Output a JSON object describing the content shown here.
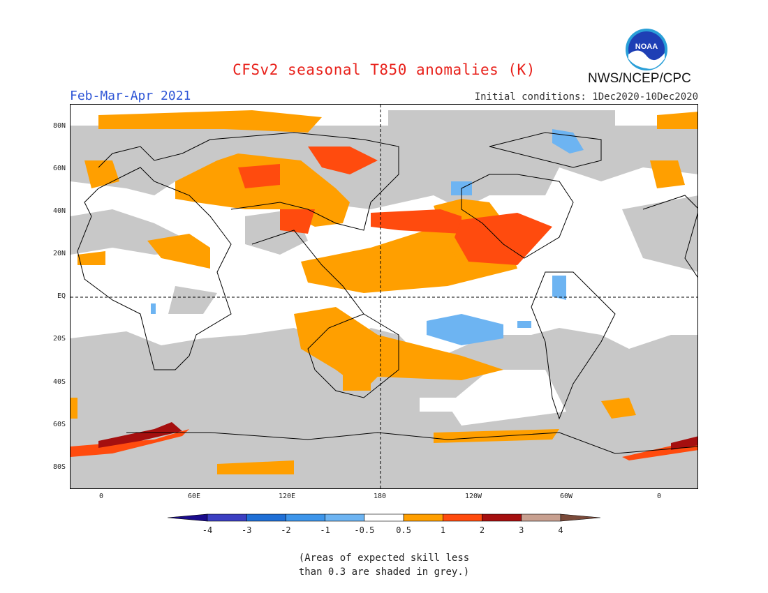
{
  "title": "CFSv2 seasonal T850 anomalies (K)",
  "period": "Feb-Mar-Apr 2021",
  "initial_conditions": "Initial conditions: 1Dec2020-10Dec2020",
  "agency": "NWS/NCEP/CPC",
  "logo_text": "NOAA",
  "lat_labels": [
    "80N",
    "60N",
    "40N",
    "20N",
    "EQ",
    "20S",
    "40S",
    "60S",
    "80S"
  ],
  "lon_labels": [
    "0",
    "60E",
    "120E",
    "180",
    "120W",
    "60W",
    "0"
  ],
  "colorbar": {
    "labels": [
      "-4",
      "-3",
      "-2",
      "-1",
      "-0.5",
      "0.5",
      "1",
      "2",
      "3",
      "4"
    ],
    "colors": [
      "#1a0b8c",
      "#3b3fc2",
      "#1f6fd6",
      "#3d95ea",
      "#6db4f2",
      "#ffffff",
      "#ff9f00",
      "#ff4b0e",
      "#a50f0f",
      "#c8a090",
      "#7a4a3a"
    ]
  },
  "skill_mask_color": "#c8c8c8",
  "note_line1": "(Areas of expected skill less",
  "note_line2": "than 0.3 are shaded in grey.)"
}
